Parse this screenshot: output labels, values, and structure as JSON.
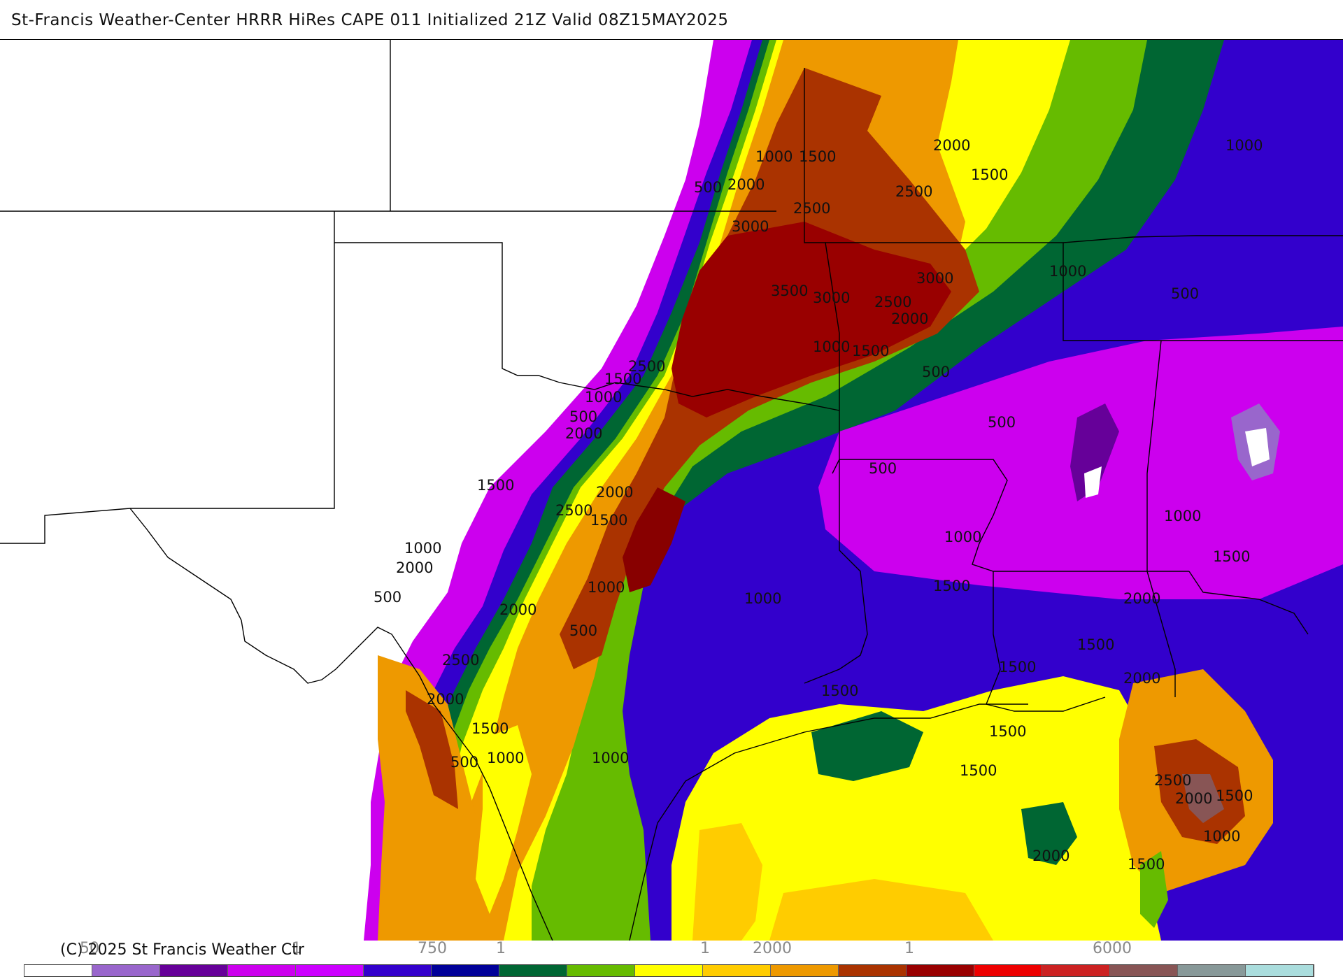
{
  "header": {
    "title": "St-Francis Weather-Center HRRR HiRes CAPE  011 Initialized  21Z Valid 08Z15MAY2025"
  },
  "footer": {
    "copyright": "(C) 2025 St Francis Weather Ctr"
  },
  "colorbar": {
    "ticks": [
      {
        "key": "t50",
        "text": "50"
      },
      {
        "key": "t250",
        "text": "1"
      },
      {
        "key": "t750",
        "text": "750"
      },
      {
        "key": "t1000",
        "text": "1"
      },
      {
        "key": "t1750",
        "text": "1"
      },
      {
        "key": "t2000",
        "text": "2000"
      },
      {
        "key": "t3000",
        "text": "1"
      },
      {
        "key": "t6000",
        "text": "6000"
      }
    ],
    "colors": [
      "#ffffff",
      "#9966cc",
      "#660099",
      "#cc00ee",
      "#cc00ff",
      "#3300cc",
      "#000099",
      "#006633",
      "#66bb00",
      "#ffff00",
      "#ffcc00",
      "#ee9900",
      "#aa3300",
      "#990000",
      "#ee0000",
      "#cc2222",
      "#885555",
      "#889999",
      "#aadddd"
    ]
  },
  "map": {
    "contour_labels": [
      {
        "key": "l1",
        "text": "1000"
      },
      {
        "key": "l2",
        "text": "1500"
      },
      {
        "key": "l3",
        "text": "2000"
      },
      {
        "key": "l4",
        "text": "1500"
      },
      {
        "key": "l5",
        "text": "1000"
      },
      {
        "key": "l6",
        "text": "500"
      },
      {
        "key": "l7",
        "text": "2000"
      },
      {
        "key": "l8",
        "text": "2500"
      },
      {
        "key": "l9",
        "text": "3000"
      },
      {
        "key": "l10",
        "text": "2500"
      },
      {
        "key": "l11",
        "text": "1000"
      },
      {
        "key": "l12",
        "text": "3500"
      },
      {
        "key": "l13",
        "text": "3000"
      },
      {
        "key": "l14",
        "text": "3000"
      },
      {
        "key": "l15",
        "text": "2500"
      },
      {
        "key": "l16",
        "text": "2000"
      },
      {
        "key": "l17",
        "text": "500"
      },
      {
        "key": "l18",
        "text": "1000"
      },
      {
        "key": "l19",
        "text": "1500"
      },
      {
        "key": "l20",
        "text": "2500"
      },
      {
        "key": "l21",
        "text": "1500"
      },
      {
        "key": "l22",
        "text": "1000"
      },
      {
        "key": "l23",
        "text": "500"
      },
      {
        "key": "l24",
        "text": "500"
      },
      {
        "key": "l25",
        "text": "2000"
      },
      {
        "key": "l26",
        "text": "500"
      },
      {
        "key": "l27",
        "text": "500"
      },
      {
        "key": "l28",
        "text": "1500"
      },
      {
        "key": "l29",
        "text": "2000"
      },
      {
        "key": "l30",
        "text": "2500"
      },
      {
        "key": "l31",
        "text": "1500"
      },
      {
        "key": "l32",
        "text": "1000"
      },
      {
        "key": "l33",
        "text": "1000"
      },
      {
        "key": "l34",
        "text": "2000"
      },
      {
        "key": "l35",
        "text": "500"
      },
      {
        "key": "l36",
        "text": "1000"
      },
      {
        "key": "l37",
        "text": "1500"
      },
      {
        "key": "l38",
        "text": "1500"
      },
      {
        "key": "l39",
        "text": "1000"
      },
      {
        "key": "l40",
        "text": "2000"
      },
      {
        "key": "l41",
        "text": "2000"
      },
      {
        "key": "l42",
        "text": "500"
      },
      {
        "key": "l43",
        "text": "2500"
      },
      {
        "key": "l44",
        "text": "1000"
      },
      {
        "key": "l45",
        "text": "2000"
      },
      {
        "key": "l46",
        "text": "1500"
      },
      {
        "key": "l47",
        "text": "1500"
      },
      {
        "key": "l48",
        "text": "500"
      },
      {
        "key": "l49",
        "text": "1000"
      },
      {
        "key": "l50",
        "text": "1000"
      },
      {
        "key": "l51",
        "text": "1500"
      },
      {
        "key": "l52",
        "text": "1500"
      },
      {
        "key": "l53",
        "text": "1500"
      },
      {
        "key": "l54",
        "text": "1500"
      },
      {
        "key": "l55",
        "text": "2000"
      },
      {
        "key": "l56",
        "text": "2500"
      },
      {
        "key": "l57",
        "text": "2000"
      },
      {
        "key": "l58",
        "text": "1500"
      },
      {
        "key": "l59",
        "text": "1000"
      },
      {
        "key": "l60",
        "text": "1500"
      },
      {
        "key": "l61",
        "text": "2000"
      }
    ]
  }
}
